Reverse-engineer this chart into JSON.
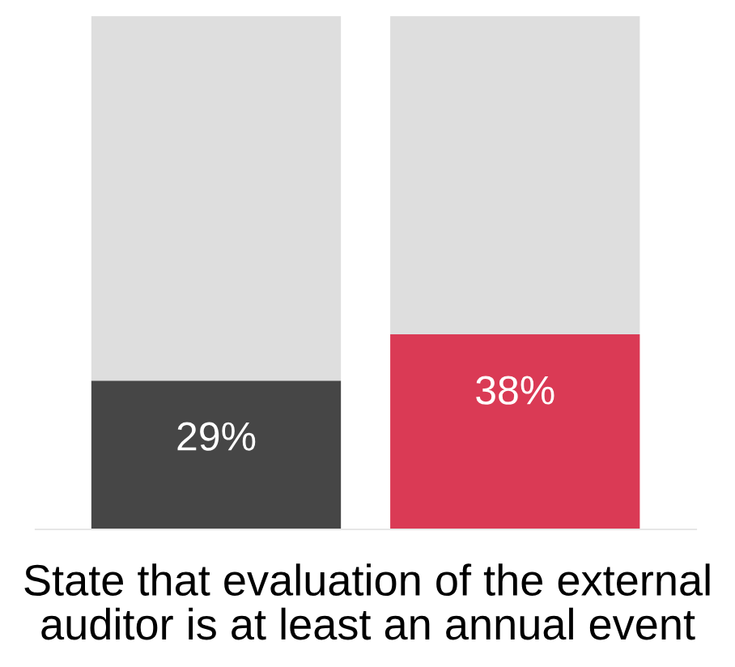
{
  "chart_data": {
    "type": "bar",
    "stacked": true,
    "categories": [
      null,
      null
    ],
    "xlabel": "State that evaluation of the external auditor is at least an annual event",
    "series": [
      {
        "colors": [
          "#464646",
          "#da3a55"
        ],
        "values": [
          29,
          38
        ],
        "value_labels": [
          "29%",
          "38%"
        ]
      },
      {
        "color": "#dedede",
        "values": [
          71,
          62
        ]
      }
    ],
    "ylim": [
      0,
      100
    ],
    "tick_labels": false,
    "grid": false
  }
}
